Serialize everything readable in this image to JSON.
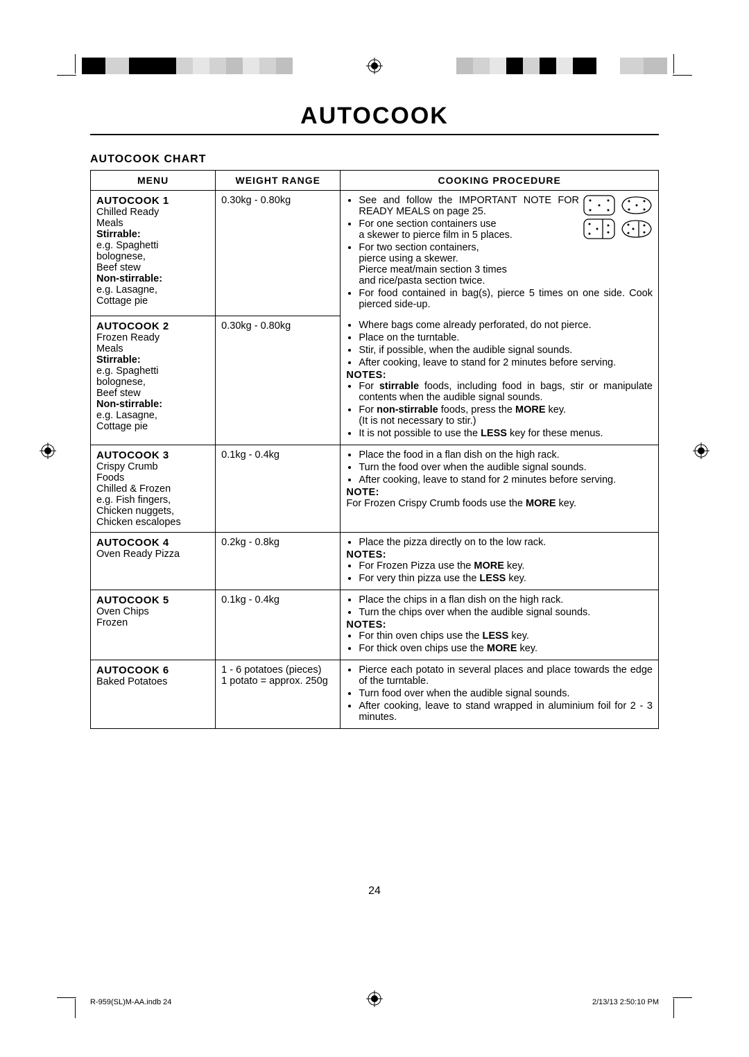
{
  "title": "AUTOCOOK",
  "subtitle": "AUTOCOOK CHART",
  "page_number": "24",
  "footer_left": "R-959(SL)M-AA.indb   24",
  "footer_right": "2/13/13   2:50:10 PM",
  "headers": {
    "menu": "MENU",
    "weight": "WEIGHT RANGE",
    "procedure": "COOKING PROCEDURE"
  },
  "color_bar": {
    "left": [
      "#000000",
      "#d2d2d2",
      "#000000",
      "#000000",
      "#d2d2d2",
      "#e6e6e6",
      "#d2d2d2",
      "#bfbfbf",
      "#e6e6e6",
      "#d2d2d2",
      "#bfbfbf"
    ],
    "right": [
      "#bfbfbf",
      "#d2d2d2",
      "#e6e6e6",
      "#000000",
      "#d2d2d2",
      "#000000",
      "#e6e6e6",
      "#000000",
      "#ffffff",
      "#d2d2d2",
      "#bfbfbf"
    ]
  },
  "rows": {
    "r1": {
      "menu_head": "AUTOCOOK 1",
      "menu_lines": [
        "Chilled Ready",
        "Meals"
      ],
      "menu_bold1": "Stirrable:",
      "menu_lines2": [
        "e.g. Spaghetti",
        "bolognese,",
        "Beef stew"
      ],
      "menu_bold2": "Non-stirrable:",
      "menu_lines3": [
        "e.g. Lasagne,",
        "Cottage pie"
      ],
      "weight": "0.30kg - 0.80kg",
      "proc": {
        "p1": "See and follow the IMPORTANT NOTE FOR READY MEALS on page 25.",
        "p2a": "For one section containers use",
        "p2b": "a skewer to pierce film in 5 places.",
        "p3a": "For two section containers,",
        "p3b": "pierce using a skewer.",
        "p3c": "Pierce meat/main section 3 times",
        "p3d": "and rice/pasta section twice.",
        "p4": "For food contained in bag(s), pierce 5 times on one side. Cook pierced side-up."
      }
    },
    "r2": {
      "menu_head": "AUTOCOOK 2",
      "menu_lines": [
        "Frozen Ready",
        "Meals"
      ],
      "menu_bold1": "Stirrable:",
      "menu_lines2": [
        "e.g. Spaghetti",
        "bolognese,",
        "Beef stew"
      ],
      "menu_bold2": "Non-stirrable:",
      "menu_lines3": [
        "e.g. Lasagne,",
        "Cottage pie"
      ],
      "weight": "0.30kg - 0.80kg",
      "proc": {
        "p1": "Where bags come already perforated, do not pierce.",
        "p2": "Place on the turntable.",
        "p3": "Stir, if possible, when the audible signal sounds.",
        "p4": "After cooking, leave to stand for 2 minutes before serving.",
        "notes": "NOTES:",
        "p5a": "For ",
        "p5b": "stirrable",
        "p5c": " foods, including food in bags, stir or manipulate contents when the audible signal sounds.",
        "p6a": "For ",
        "p6b": "non-stirrable",
        "p6c": " foods, press the ",
        "p6d": "MORE",
        "p6e": " key.",
        "p6f": "(It is not necessary to stir.)",
        "p7a": "It is not possible to use the ",
        "p7b": "LESS",
        "p7c": " key for these menus."
      }
    },
    "r3": {
      "menu_head": "AUTOCOOK 3",
      "menu_lines": [
        "Crispy Crumb",
        "Foods",
        "Chilled & Frozen",
        "e.g. Fish fingers,",
        "Chicken nuggets,",
        "Chicken escalopes"
      ],
      "weight": "0.1kg - 0.4kg",
      "proc": {
        "p1": "Place the food in a flan dish on the high rack.",
        "p2": "Turn the food over when the audible signal sounds.",
        "p3": "After cooking, leave to stand for 2 minutes before serving.",
        "note": "NOTE:",
        "p4a": "For Frozen Crispy Crumb foods use the ",
        "p4b": "MORE",
        "p4c": " key."
      }
    },
    "r4": {
      "menu_head": "AUTOCOOK 4",
      "menu_lines": [
        "Oven Ready Pizza"
      ],
      "weight": "0.2kg - 0.8kg",
      "proc": {
        "p1": "Place the pizza directly on to the low rack.",
        "notes": "NOTES:",
        "p2a": "For Frozen Pizza use the ",
        "p2b": "MORE",
        "p2c": " key.",
        "p3a": "For very thin pizza use the ",
        "p3b": "LESS",
        "p3c": " key."
      }
    },
    "r5": {
      "menu_head": "AUTOCOOK 5",
      "menu_lines": [
        "Oven Chips",
        "Frozen"
      ],
      "weight": "0.1kg - 0.4kg",
      "proc": {
        "p1": "Place the chips in a flan dish on the high rack.",
        "p2": "Turn the chips over when the audible signal sounds.",
        "notes": "NOTES:",
        "p3a": "For thin oven chips use the ",
        "p3b": "LESS",
        "p3c": " key.",
        "p4a": "For thick oven chips use the ",
        "p4b": "MORE",
        "p4c": " key."
      }
    },
    "r6": {
      "menu_head": "AUTOCOOK 6",
      "menu_lines": [
        "Baked Potatoes"
      ],
      "weight_l1": "1 - 6 potatoes (pieces)",
      "weight_l2": "1 potato = approx. 250g",
      "proc": {
        "p1": "Pierce each potato in several places and place towards the edge of the turntable.",
        "p2": "Turn food over when the audible signal sounds.",
        "p3": "After cooking, leave to stand wrapped in aluminium foil for 2 - 3 minutes."
      }
    }
  }
}
